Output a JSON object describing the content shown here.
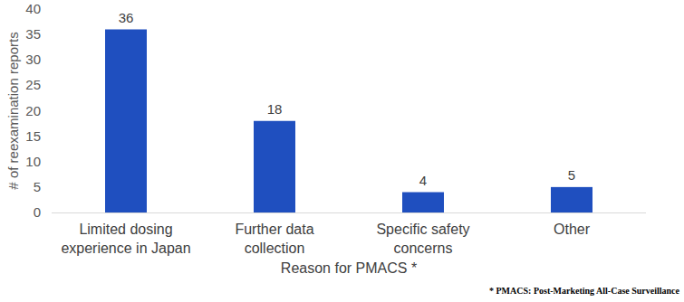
{
  "chart_data": {
    "type": "bar",
    "categories": [
      "Limited dosing experience in Japan",
      "Further data collection",
      "Specific safety concerns",
      "Other"
    ],
    "values": [
      36,
      18,
      4,
      5
    ],
    "color": "#1f4fbf",
    "ylim": [
      0,
      40
    ],
    "yticks": [
      0,
      5,
      10,
      15,
      20,
      25,
      30,
      35,
      40
    ],
    "y_label": "# of reexamination reports",
    "x_label": "Reason for PMACS *",
    "annotations": [
      "* PMACS: Post-Marketing All-Case Surveillance"
    ],
    "data_labels": true,
    "grid": false
  }
}
